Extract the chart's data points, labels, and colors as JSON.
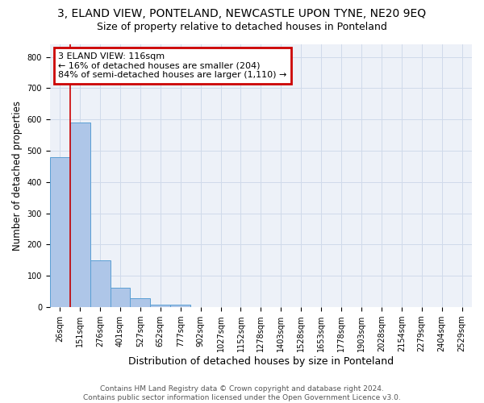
{
  "title": "3, ELAND VIEW, PONTELAND, NEWCASTLE UPON TYNE, NE20 9EQ",
  "subtitle": "Size of property relative to detached houses in Ponteland",
  "xlabel": "Distribution of detached houses by size in Ponteland",
  "ylabel": "Number of detached properties",
  "bar_labels": [
    "26sqm",
    "151sqm",
    "276sqm",
    "401sqm",
    "527sqm",
    "652sqm",
    "777sqm",
    "902sqm",
    "1027sqm",
    "1152sqm",
    "1278sqm",
    "1403sqm",
    "1528sqm",
    "1653sqm",
    "1778sqm",
    "1903sqm",
    "2028sqm",
    "2154sqm",
    "2279sqm",
    "2404sqm",
    "2529sqm"
  ],
  "bar_values": [
    480,
    590,
    150,
    63,
    28,
    8,
    8,
    0,
    0,
    0,
    0,
    0,
    0,
    0,
    0,
    0,
    0,
    0,
    0,
    0,
    0
  ],
  "bar_color": "#aec6e8",
  "bar_edge_color": "#5a9fd4",
  "property_line_x": 0.5,
  "property_line_color": "#cc0000",
  "ylim": [
    0,
    840
  ],
  "yticks": [
    0,
    100,
    200,
    300,
    400,
    500,
    600,
    700,
    800
  ],
  "annotation_text": "3 ELAND VIEW: 116sqm\n← 16% of detached houses are smaller (204)\n84% of semi-detached houses are larger (1,110) →",
  "annotation_box_color": "#cc0000",
  "grid_color": "#d0daea",
  "bg_color": "#edf1f8",
  "footer": "Contains HM Land Registry data © Crown copyright and database right 2024.\nContains public sector information licensed under the Open Government Licence v3.0.",
  "title_fontsize": 10,
  "subtitle_fontsize": 9,
  "xlabel_fontsize": 9,
  "ylabel_fontsize": 8.5,
  "tick_fontsize": 7,
  "footer_fontsize": 6.5,
  "ann_fontsize": 8
}
